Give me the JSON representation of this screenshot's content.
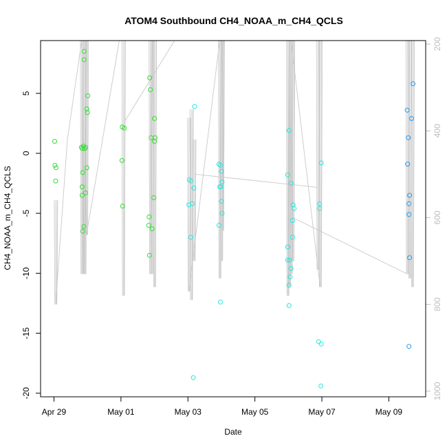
{
  "chart_data": {
    "type": "scatter",
    "title": "ATOM4 Southbound CH4_NOAA_m_CH4_QCLS",
    "xlabel": "Date",
    "ylabel": "CH4_NOAA_m_CH4_QCLS",
    "x_unit": "days since Apr 29",
    "x_ticks": [
      {
        "value": 0,
        "label": "Apr 29"
      },
      {
        "value": 2,
        "label": "May 01"
      },
      {
        "value": 4,
        "label": "May 03"
      },
      {
        "value": 6,
        "label": "May 05"
      },
      {
        "value": 8,
        "label": "May 07"
      },
      {
        "value": 10,
        "label": "May 09"
      }
    ],
    "xlim": [
      -0.4,
      11.1
    ],
    "ylim": [
      -20.3,
      9.4
    ],
    "y_ticks": [
      -20,
      -15,
      -10,
      -5,
      0,
      5
    ],
    "y2_ticks": [
      200,
      400,
      600,
      800,
      1000
    ],
    "y2lim": [
      1013,
      192
    ],
    "y2_color": "#bdbdbd",
    "grid": false,
    "colors": {
      "green": "#33dd33",
      "cyan": "#22e8e0",
      "blue": "#2299ee",
      "trace": "#c8c8c8"
    },
    "series": [
      {
        "color": "green",
        "points": [
          [
            0.02,
            1.0
          ],
          [
            0.03,
            -1.0
          ],
          [
            0.06,
            -1.2
          ],
          [
            0.05,
            -2.3
          ],
          [
            0.82,
            0.5
          ],
          [
            0.85,
            0.4
          ],
          [
            0.88,
            0.6
          ],
          [
            0.92,
            0.4
          ],
          [
            0.95,
            0.5
          ],
          [
            0.86,
            -1.6
          ],
          [
            0.84,
            -2.8
          ],
          [
            0.84,
            -3.5
          ],
          [
            0.94,
            -3.3
          ],
          [
            0.98,
            -1.2
          ],
          [
            0.86,
            -6.5
          ],
          [
            0.89,
            -6.1
          ],
          [
            0.9,
            8.5
          ],
          [
            0.9,
            7.8
          ],
          [
            0.98,
            3.7
          ],
          [
            1.0,
            3.4
          ],
          [
            1.01,
            4.8
          ],
          [
            2.04,
            2.2
          ],
          [
            2.1,
            2.1
          ],
          [
            2.03,
            -0.6
          ],
          [
            2.05,
            -4.4
          ],
          [
            2.86,
            6.3
          ],
          [
            2.88,
            5.3
          ],
          [
            2.9,
            1.3
          ],
          [
            3.0,
            1.0
          ],
          [
            3.0,
            2.9
          ],
          [
            3.02,
            1.3
          ],
          [
            2.98,
            -3.7
          ],
          [
            2.84,
            -5.3
          ],
          [
            2.83,
            -6.0
          ],
          [
            2.93,
            -6.3
          ],
          [
            2.85,
            -8.5
          ]
        ]
      },
      {
        "color": "cyan",
        "points": [
          [
            4.2,
            3.9
          ],
          [
            4.04,
            -2.2
          ],
          [
            4.09,
            -2.3
          ],
          [
            4.18,
            -2.9
          ],
          [
            4.03,
            -4.3
          ],
          [
            4.13,
            -4.2
          ],
          [
            4.08,
            -7.0
          ],
          [
            4.16,
            -18.7
          ],
          [
            4.93,
            -0.9
          ],
          [
            4.97,
            -1.0
          ],
          [
            5.0,
            -1.5
          ],
          [
            5.02,
            -2.4
          ],
          [
            4.95,
            -2.8
          ],
          [
            4.98,
            -2.8
          ],
          [
            5.0,
            -4.0
          ],
          [
            5.02,
            -5.0
          ],
          [
            4.93,
            -6.0
          ],
          [
            4.97,
            -12.4
          ],
          [
            7.02,
            1.9
          ],
          [
            6.98,
            -1.8
          ],
          [
            7.08,
            -2.5
          ],
          [
            7.14,
            -4.3
          ],
          [
            7.17,
            -4.6
          ],
          [
            7.12,
            -5.6
          ],
          [
            7.12,
            -7.0
          ],
          [
            6.98,
            -7.8
          ],
          [
            6.98,
            -8.9
          ],
          [
            7.04,
            -8.9
          ],
          [
            7.08,
            -9.6
          ],
          [
            7.05,
            -10.3
          ],
          [
            7.02,
            -11.0
          ],
          [
            7.02,
            -12.7
          ],
          [
            7.98,
            -0.8
          ],
          [
            7.93,
            -4.2
          ],
          [
            7.93,
            -4.6
          ],
          [
            7.9,
            -15.7
          ],
          [
            7.98,
            -15.9
          ],
          [
            7.97,
            -19.4
          ]
        ]
      },
      {
        "color": "blue",
        "points": [
          [
            10.55,
            3.6
          ],
          [
            10.58,
            1.3
          ],
          [
            10.56,
            -0.9
          ],
          [
            10.62,
            -3.5
          ],
          [
            10.6,
            -4.2
          ],
          [
            10.6,
            -5.1
          ],
          [
            10.62,
            -8.7
          ],
          [
            10.68,
            2.9
          ],
          [
            10.72,
            5.8
          ],
          [
            10.6,
            -16.1
          ]
        ]
      }
    ]
  }
}
